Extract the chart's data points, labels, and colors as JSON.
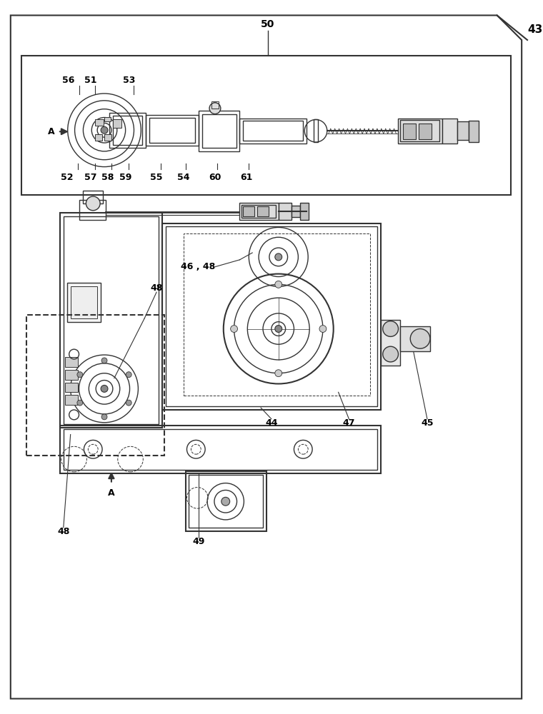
{
  "bg_color": "#ffffff",
  "line_color": "#333333",
  "fig_width": 7.6,
  "fig_height": 10.0,
  "label_43": "43",
  "label_50": "50",
  "label_56": "56",
  "label_51": "51",
  "label_53": "53",
  "label_52": "52",
  "label_57": "57",
  "label_58": "58",
  "label_59": "59",
  "label_55": "55",
  "label_54": "54",
  "label_60": "60",
  "label_61": "61",
  "label_A": "A",
  "label_46_48": "46 , 48",
  "label_48a": "48",
  "label_44": "44",
  "label_47": "47",
  "label_45": "45",
  "label_48b": "48",
  "label_49": "49"
}
